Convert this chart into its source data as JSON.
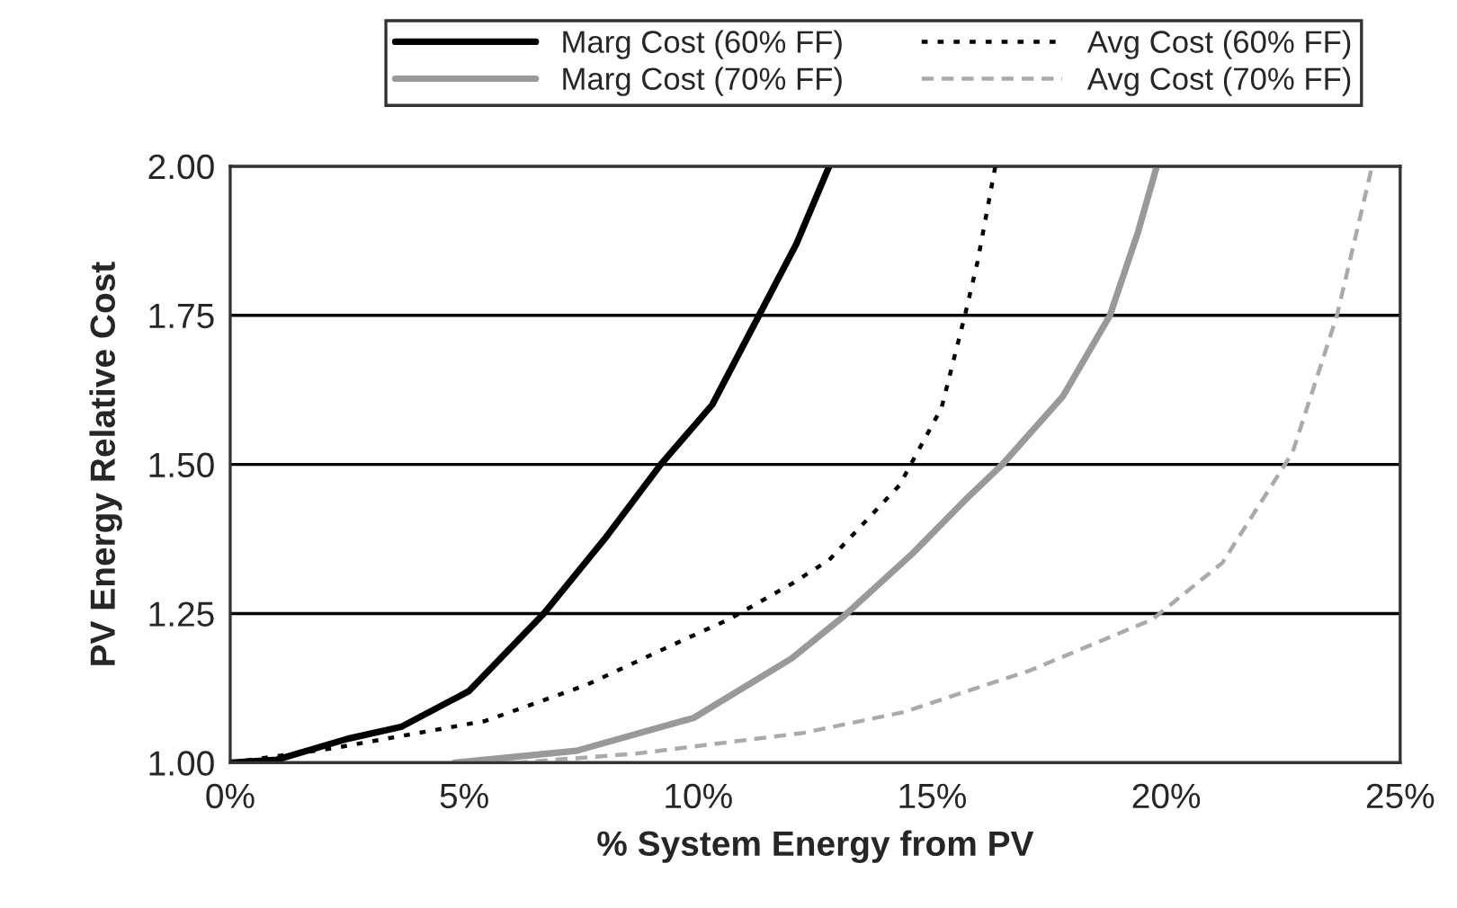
{
  "chart_data": {
    "type": "line",
    "xlabel": "% System Energy from PV",
    "ylabel": "PV Energy Relative Cost",
    "xlim": [
      0,
      25
    ],
    "xticks": [
      {
        "value": 0,
        "label": "0%"
      },
      {
        "value": 5,
        "label": "5%"
      },
      {
        "value": 10,
        "label": "10%"
      },
      {
        "value": 15,
        "label": "15%"
      },
      {
        "value": 20,
        "label": "20%"
      },
      {
        "value": 25,
        "label": "25%"
      }
    ],
    "ylim": [
      1.0,
      2.0
    ],
    "yticks": [
      {
        "value": 1.0,
        "label": "1.00"
      },
      {
        "value": 1.25,
        "label": "1.25"
      },
      {
        "value": 1.5,
        "label": "1.50"
      },
      {
        "value": 1.75,
        "label": "1.75"
      },
      {
        "value": 2.0,
        "label": "2.00"
      }
    ],
    "grid": "y",
    "legend": "top",
    "marker": "none",
    "series": [
      {
        "name": "Marg Cost (60% FF)",
        "color": "#000000",
        "line_style": "solid",
        "x": [
          0,
          1.0,
          2.5,
          3.65,
          5.1,
          6.7,
          8.0,
          9.2,
          10.3,
          11.3,
          12.1,
          12.8
        ],
        "values": [
          1.0,
          1.005,
          1.04,
          1.06,
          1.12,
          1.25,
          1.375,
          1.5,
          1.6,
          1.75,
          1.87,
          2.0
        ]
      },
      {
        "name": "Avg Cost (60% FF)",
        "color": "#000000",
        "line_style": "dotted",
        "x": [
          0,
          2.25,
          5.45,
          7.6,
          9.8,
          10.65,
          12.0,
          12.8,
          14.3,
          15.2,
          15.7,
          15.97,
          16.35
        ],
        "values": [
          1.0,
          1.025,
          1.07,
          1.13,
          1.21,
          1.24,
          1.3,
          1.34,
          1.465,
          1.595,
          1.75,
          1.84,
          2.0
        ]
      },
      {
        "name": "Marg Cost (70% FF)",
        "color": "#999999",
        "line_style": "solid",
        "x": [
          4.8,
          7.4,
          9.9,
          12.0,
          13.1,
          14.57,
          15.7,
          16.5,
          17.8,
          18.8,
          19.4,
          19.8
        ],
        "values": [
          1.0,
          1.02,
          1.075,
          1.175,
          1.245,
          1.35,
          1.44,
          1.5,
          1.615,
          1.75,
          1.89,
          2.0
        ]
      },
      {
        "name": "Avg Cost (70% FF)",
        "color": "#aaaaaa",
        "line_style": "dashed",
        "x": [
          6.1,
          8.65,
          12.25,
          14.4,
          17.1,
          19.7,
          21.2,
          22.7,
          23.3,
          23.65,
          24.1,
          24.4
        ],
        "values": [
          1.0,
          1.015,
          1.05,
          1.085,
          1.155,
          1.24,
          1.335,
          1.52,
          1.665,
          1.75,
          1.9,
          2.0
        ]
      }
    ]
  }
}
